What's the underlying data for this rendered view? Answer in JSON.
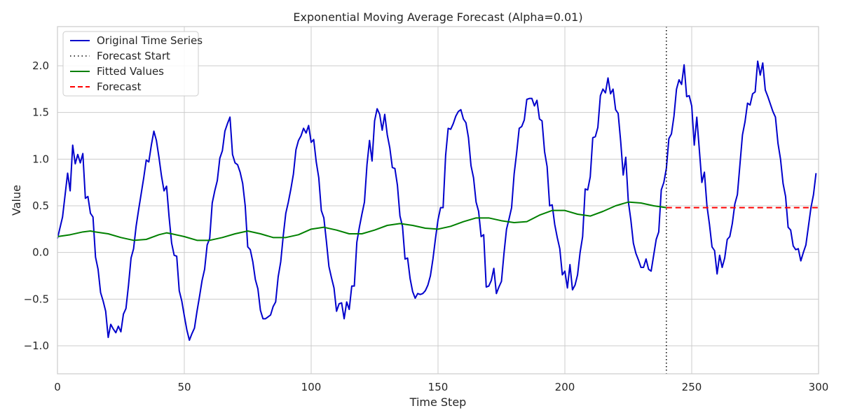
{
  "chart_data": {
    "type": "line",
    "title": "Exponential Moving Average Forecast (Alpha=0.01)",
    "xlabel": "Time Step",
    "ylabel": "Value",
    "xlim": [
      0,
      300
    ],
    "ylim": [
      -1.3,
      2.42
    ],
    "x_ticks": [
      0,
      50,
      100,
      150,
      200,
      250,
      300
    ],
    "x_tick_labels": [
      "0",
      "50",
      "100",
      "150",
      "200",
      "250",
      "300"
    ],
    "y_ticks": [
      -1.0,
      -0.5,
      0.0,
      0.5,
      1.0,
      1.5,
      2.0
    ],
    "y_tick_labels": [
      "−1.0",
      "−0.5",
      "0.0",
      "0.5",
      "1.0",
      "1.5",
      "2.0"
    ],
    "grid": true,
    "legend_position": "top-left",
    "legend": [
      {
        "label": "Original Time Series",
        "color": "#0000cc",
        "style": "solid"
      },
      {
        "label": "Forecast Start",
        "color": "#000000",
        "style": "dotted"
      },
      {
        "label": "Fitted Values",
        "color": "#008000",
        "style": "solid"
      },
      {
        "label": "Forecast",
        "color": "#ff0000",
        "style": "dashed"
      }
    ],
    "series": [
      {
        "name": "Original Time Series",
        "color": "#0000cc",
        "x": [
          0,
          2,
          4,
          5,
          6,
          7,
          8,
          9,
          10,
          11,
          12,
          13,
          14,
          15,
          16,
          17,
          18,
          19,
          20,
          21,
          22,
          23,
          24,
          25,
          26,
          27,
          28,
          29,
          30,
          31,
          32,
          33,
          34,
          35,
          36,
          37,
          38,
          39,
          40,
          41,
          42,
          43,
          44,
          45,
          46,
          47,
          48,
          49,
          50,
          51,
          52,
          53,
          54,
          55,
          56,
          57,
          58,
          59,
          60,
          61,
          62,
          63,
          64,
          65,
          66,
          67,
          68,
          69,
          70,
          71,
          72,
          73,
          74,
          75,
          76,
          77,
          78,
          79,
          80,
          81,
          82,
          83,
          84,
          85,
          86,
          87,
          88,
          89,
          90,
          91,
          92,
          93,
          94,
          95,
          96,
          97,
          98,
          99,
          100,
          101,
          102,
          103,
          104,
          105,
          106,
          107,
          108,
          109,
          110,
          111,
          112,
          113,
          114,
          115,
          116,
          117,
          118,
          119,
          120,
          121,
          122,
          123,
          124,
          125,
          126,
          127,
          128,
          129,
          130,
          131,
          132,
          133,
          134,
          135,
          136,
          137,
          138,
          139,
          140,
          141,
          142,
          143,
          144,
          145,
          146,
          147,
          148,
          149,
          150,
          151,
          152,
          153,
          154,
          155,
          156,
          157,
          158,
          159,
          160,
          161,
          162,
          163,
          164,
          165,
          166,
          167,
          168,
          169,
          170,
          171,
          172,
          173,
          174,
          175,
          176,
          177,
          178,
          179,
          180,
          181,
          182,
          183,
          184,
          185,
          186,
          187,
          188,
          189,
          190,
          191,
          192,
          193,
          194,
          195,
          196,
          197,
          198,
          199,
          200,
          201,
          202,
          203,
          204,
          205,
          206,
          207,
          208,
          209,
          210,
          211,
          212,
          213,
          214,
          215,
          216,
          217,
          218,
          219,
          220,
          221,
          222,
          223,
          224,
          225,
          226,
          227,
          228,
          229,
          230,
          231,
          232,
          233,
          234,
          235,
          236,
          237,
          238,
          239,
          240,
          241,
          242,
          243,
          244,
          245,
          246,
          247,
          248,
          249,
          250,
          251,
          252,
          253,
          254,
          255,
          256,
          257,
          258,
          259,
          260,
          261,
          262,
          263,
          264,
          265,
          266,
          267,
          268,
          269,
          270,
          271,
          272,
          273,
          274,
          275,
          276,
          277,
          278,
          279,
          280,
          281,
          282,
          283,
          284,
          285,
          286,
          287,
          288,
          289,
          290,
          291,
          292,
          293,
          294,
          295,
          296,
          297,
          298,
          299
        ],
        "y": [
          0.15,
          0.38,
          0.85,
          0.66,
          1.15,
          0.95,
          1.05,
          0.96,
          1.06,
          0.58,
          0.6,
          0.42,
          0.38,
          -0.05,
          -0.18,
          -0.43,
          -0.52,
          -0.63,
          -0.91,
          -0.77,
          -0.82,
          -0.86,
          -0.79,
          -0.85,
          -0.66,
          -0.6,
          -0.35,
          -0.06,
          0.04,
          0.28,
          0.46,
          0.63,
          0.8,
          0.99,
          0.97,
          1.15,
          1.3,
          1.2,
          1.02,
          0.82,
          0.66,
          0.71,
          0.38,
          0.1,
          -0.03,
          -0.04,
          -0.41,
          -0.52,
          -0.68,
          -0.83,
          -0.94,
          -0.87,
          -0.81,
          -0.63,
          -0.47,
          -0.3,
          -0.18,
          0.08,
          0.15,
          0.53,
          0.66,
          0.77,
          1.01,
          1.09,
          1.3,
          1.38,
          1.45,
          1.05,
          0.96,
          0.94,
          0.86,
          0.74,
          0.5,
          0.06,
          0.03,
          -0.1,
          -0.29,
          -0.39,
          -0.62,
          -0.71,
          -0.71,
          -0.69,
          -0.67,
          -0.58,
          -0.53,
          -0.26,
          -0.1,
          0.18,
          0.42,
          0.54,
          0.68,
          0.84,
          1.1,
          1.2,
          1.25,
          1.33,
          1.28,
          1.36,
          1.18,
          1.21,
          0.97,
          0.8,
          0.45,
          0.37,
          0.12,
          -0.15,
          -0.27,
          -0.38,
          -0.63,
          -0.55,
          -0.54,
          -0.71,
          -0.53,
          -0.61,
          -0.36,
          -0.36,
          0.11,
          0.27,
          0.41,
          0.54,
          0.94,
          1.2,
          0.98,
          1.41,
          1.54,
          1.48,
          1.31,
          1.48,
          1.26,
          1.12,
          0.91,
          0.9,
          0.72,
          0.39,
          0.28,
          -0.07,
          -0.06,
          -0.28,
          -0.42,
          -0.49,
          -0.44,
          -0.45,
          -0.44,
          -0.41,
          -0.35,
          -0.25,
          -0.07,
          0.15,
          0.35,
          0.48,
          0.48,
          1.04,
          1.33,
          1.32,
          1.38,
          1.46,
          1.51,
          1.53,
          1.43,
          1.39,
          1.23,
          0.93,
          0.8,
          0.54,
          0.44,
          0.17,
          0.19,
          -0.37,
          -0.36,
          -0.3,
          -0.17,
          -0.44,
          -0.37,
          -0.31,
          -0.01,
          0.25,
          0.36,
          0.48,
          0.84,
          1.07,
          1.33,
          1.35,
          1.42,
          1.64,
          1.65,
          1.65,
          1.57,
          1.63,
          1.43,
          1.41,
          1.08,
          0.92,
          0.5,
          0.51,
          0.3,
          0.16,
          0.04,
          -0.24,
          -0.2,
          -0.38,
          -0.13,
          -0.4,
          -0.35,
          -0.24,
          0.0,
          0.17,
          0.68,
          0.67,
          0.81,
          1.23,
          1.24,
          1.34,
          1.68,
          1.75,
          1.71,
          1.87,
          1.7,
          1.75,
          1.53,
          1.49,
          1.19,
          0.83,
          1.02,
          0.55,
          0.35,
          0.1,
          -0.01,
          -0.08,
          -0.16,
          -0.16,
          -0.07,
          -0.18,
          -0.2,
          -0.03,
          0.14,
          0.22,
          0.67,
          0.75,
          0.9,
          1.22,
          1.27,
          1.46,
          1.75,
          1.85,
          1.8,
          2.01,
          1.67,
          1.68,
          1.57,
          1.15,
          1.45,
          1.1,
          0.75,
          0.86,
          0.5,
          0.3,
          0.06,
          0.02,
          -0.23,
          -0.03,
          -0.16,
          -0.06,
          0.14,
          0.17,
          0.31,
          0.52,
          0.62,
          0.94,
          1.26,
          1.4,
          1.6,
          1.58,
          1.7,
          1.72,
          2.05,
          1.9,
          2.03,
          1.74,
          1.67,
          1.59,
          1.51,
          1.45,
          1.17,
          1.0,
          0.74,
          0.6,
          0.27,
          0.24,
          0.07,
          0.03,
          0.04,
          -0.09,
          0.0,
          0.08,
          0.28,
          0.48,
          0.62,
          0.85
        ]
      },
      {
        "name": "Fitted Values",
        "color": "#008000",
        "x": [
          0,
          5,
          10,
          13,
          15,
          20,
          25,
          30,
          35,
          40,
          43,
          45,
          50,
          55,
          60,
          65,
          70,
          75,
          80,
          85,
          90,
          95,
          100,
          105,
          110,
          115,
          120,
          125,
          130,
          135,
          140,
          145,
          150,
          155,
          160,
          165,
          170,
          175,
          180,
          185,
          190,
          195,
          200,
          205,
          210,
          215,
          220,
          225,
          230,
          235,
          240
        ],
        "y": [
          0.17,
          0.19,
          0.22,
          0.23,
          0.22,
          0.2,
          0.16,
          0.13,
          0.14,
          0.19,
          0.21,
          0.2,
          0.17,
          0.13,
          0.13,
          0.16,
          0.2,
          0.23,
          0.2,
          0.16,
          0.16,
          0.19,
          0.25,
          0.27,
          0.24,
          0.2,
          0.2,
          0.24,
          0.29,
          0.31,
          0.29,
          0.26,
          0.25,
          0.28,
          0.33,
          0.37,
          0.37,
          0.34,
          0.32,
          0.33,
          0.4,
          0.45,
          0.45,
          0.41,
          0.39,
          0.44,
          0.5,
          0.54,
          0.53,
          0.5,
          0.48
        ]
      },
      {
        "name": "Forecast",
        "color": "#ff0000",
        "x": [
          240,
          300
        ],
        "y": [
          0.48,
          0.48
        ]
      }
    ],
    "forecast_start_x": 240
  }
}
